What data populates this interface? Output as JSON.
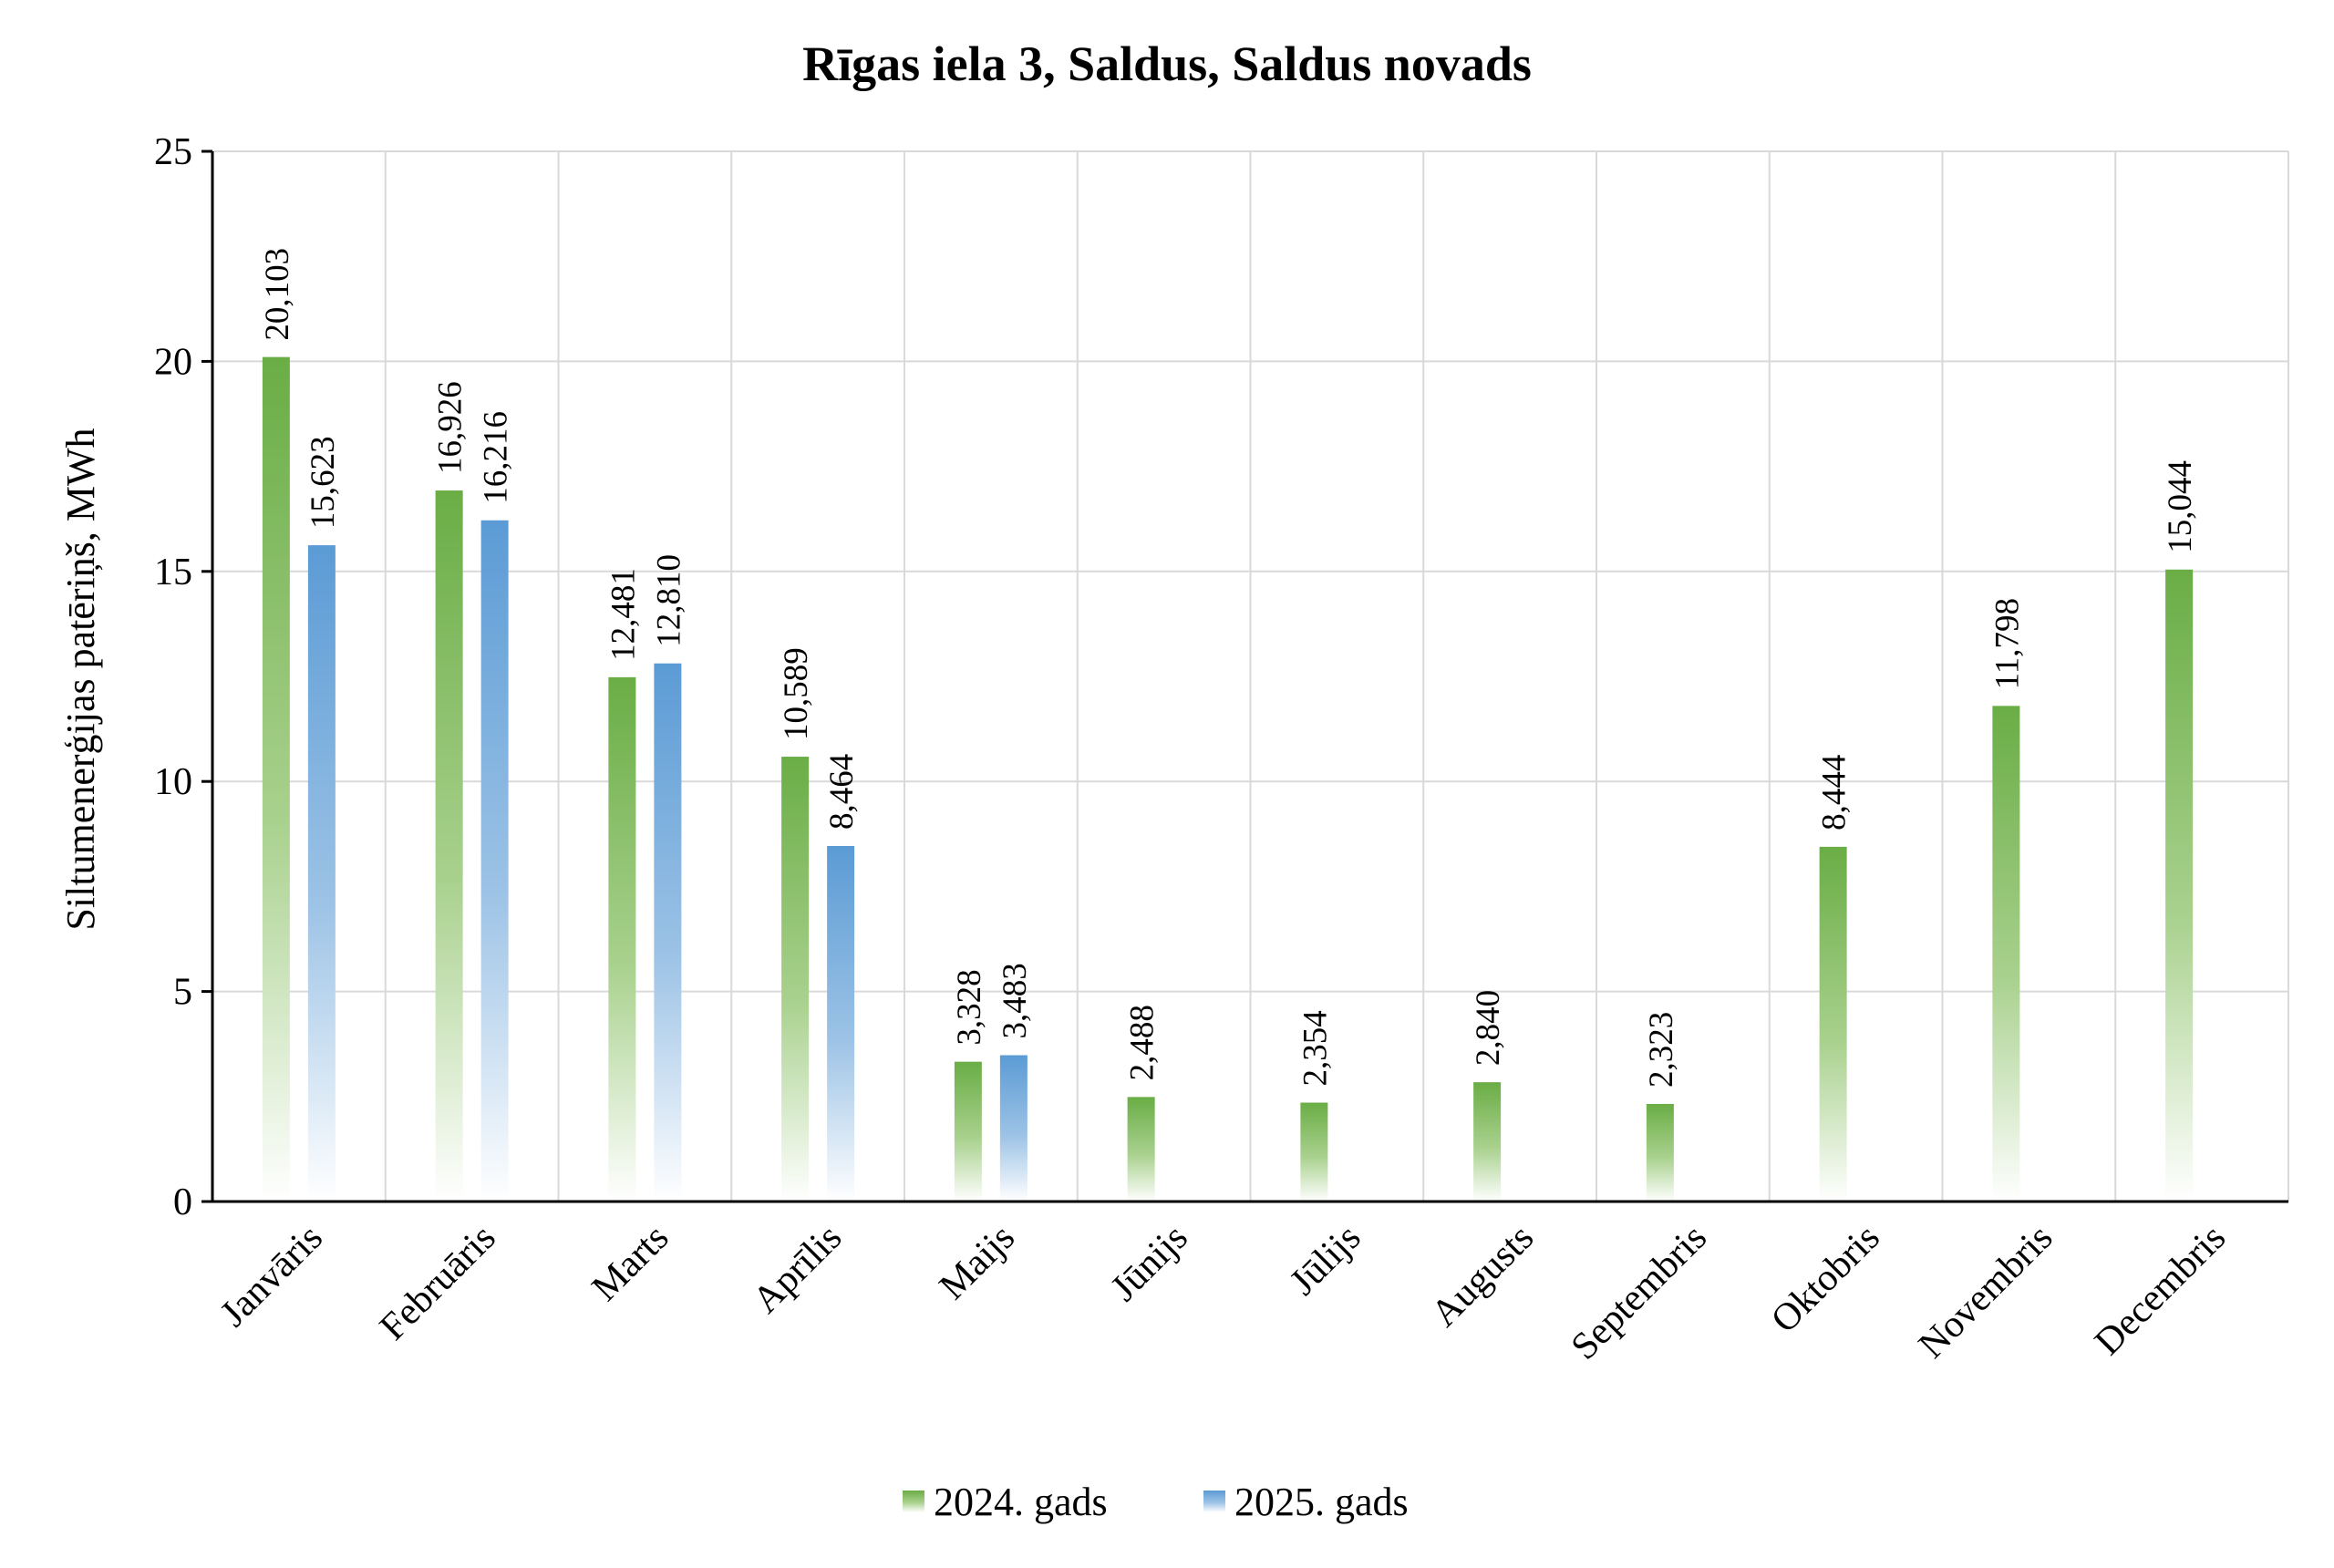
{
  "chart_data": {
    "type": "bar",
    "title": "Rīgas iela 3, Saldus, Saldus novads",
    "xlabel": "",
    "ylabel": "Siltumenerģijas patēriņš, MWh",
    "ylim": [
      0,
      25
    ],
    "yticks": [
      "0",
      "5",
      "10",
      "15",
      "20",
      "25"
    ],
    "grid": true,
    "legend": "bottom",
    "categories": [
      "Janvāris",
      "Februāris",
      "Marts",
      "Aprīlis",
      "Maijs",
      "Jūnijs",
      "Jūlijs",
      "Augusts",
      "Septembris",
      "Oktobris",
      "Novembris",
      "Decembris"
    ],
    "series": [
      {
        "name": "2024. gads",
        "color": "#6aad45",
        "values": [
          20.103,
          16.926,
          12.481,
          10.589,
          3.328,
          2.488,
          2.354,
          2.84,
          2.323,
          8.444,
          11.798,
          15.044
        ],
        "labels": [
          "20,103",
          "16,926",
          "12,481",
          "10,589",
          "3,328",
          "2,488",
          "2,354",
          "2,840",
          "2,323",
          "8,444",
          "11,798",
          "15,044"
        ]
      },
      {
        "name": "2025. gads",
        "color": "#5b9bd5",
        "values": [
          15.623,
          16.216,
          12.81,
          8.464,
          3.483,
          null,
          null,
          null,
          null,
          null,
          null,
          null
        ],
        "labels": [
          "15,623",
          "16,216",
          "12,810",
          "8,464",
          "3,483",
          "",
          "",
          "",
          "",
          "",
          "",
          ""
        ]
      }
    ]
  }
}
